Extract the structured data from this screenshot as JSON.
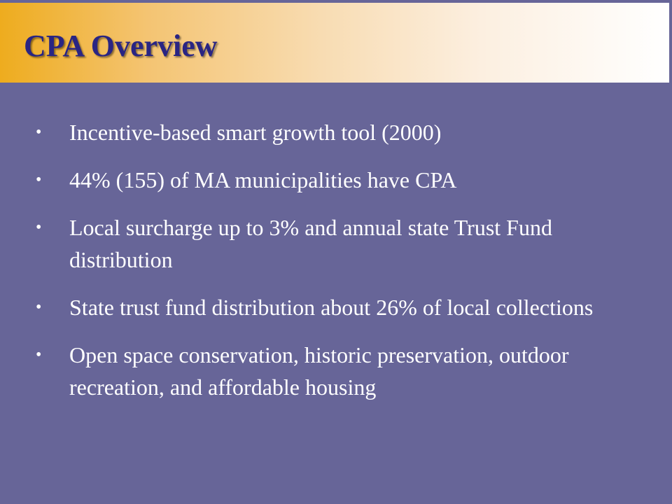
{
  "slide": {
    "title": "CPA Overview",
    "bullet_glyph": "•",
    "bullets": [
      "Incentive-based smart growth tool (2000)",
      "44% (155) of MA municipalities have CPA",
      "Local surcharge up to 3% and annual state Trust Fund distribution",
      "State trust fund distribution about 26% of local collections",
      "Open space conservation, historic preservation, outdoor recreation, and affordable housing"
    ]
  },
  "colors": {
    "background": "#676598",
    "title_text": "#2a2583",
    "title_gradient_start": "#eeac1e",
    "title_gradient_end": "#ffffff",
    "body_text": "#ffffff"
  }
}
